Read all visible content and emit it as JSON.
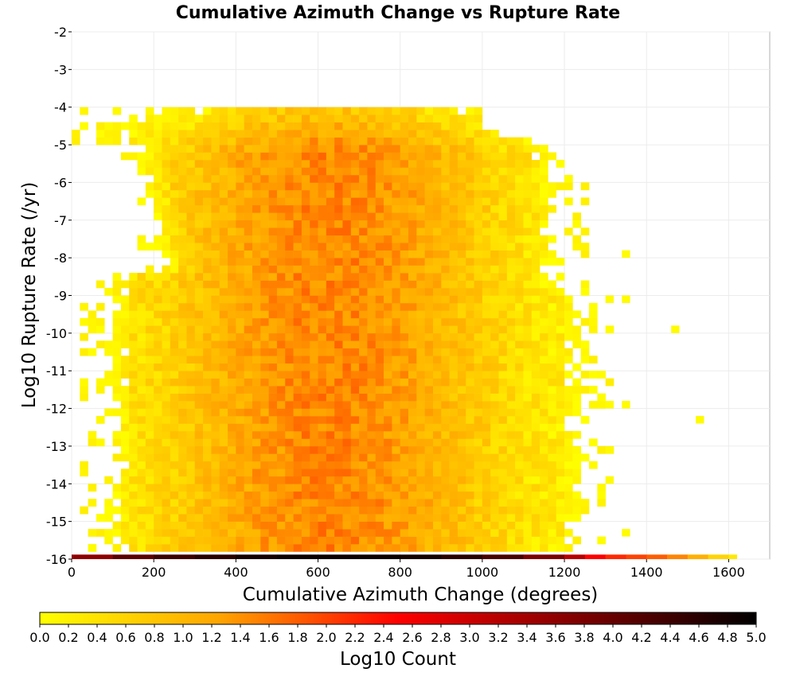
{
  "chart_data": {
    "type": "heatmap",
    "title": "Cumulative Azimuth Change vs Rupture Rate",
    "xlabel": "Cumulative Azimuth Change (degrees)",
    "ylabel": "Log10 Rupture Rate (/yr)",
    "xlim": [
      0,
      1700
    ],
    "ylim": [
      -16,
      -2
    ],
    "x_ticks": [
      "0",
      "200",
      "400",
      "600",
      "800",
      "1000",
      "1200",
      "1400",
      "1600"
    ],
    "y_ticks": [
      "-2",
      "-3",
      "-4",
      "-5",
      "-6",
      "-7",
      "-8",
      "-9",
      "-10",
      "-11",
      "-12",
      "-13",
      "-14",
      "-15",
      "-16"
    ],
    "x_bin_width": 20,
    "y_bin_width": 0.2,
    "grid": true,
    "colorbar": {
      "label": "Log10 Count",
      "range": [
        0.0,
        5.0
      ],
      "ticks": [
        "0.0",
        "0.2",
        "0.4",
        "0.6",
        "0.8",
        "1.0",
        "1.2",
        "1.4",
        "1.6",
        "1.8",
        "2.0",
        "2.2",
        "2.4",
        "2.6",
        "2.8",
        "3.0",
        "3.2",
        "3.4",
        "3.6",
        "3.8",
        "4.0",
        "4.2",
        "4.4",
        "4.6",
        "4.8",
        "5.0"
      ],
      "colors": [
        "#ffff00",
        "#ffa500",
        "#ff0000",
        "#800000",
        "#000000"
      ],
      "placement": "bottom"
    },
    "bottom_row_bins": [
      {
        "x": 0,
        "value": 3.6
      },
      {
        "x": 100,
        "value": 4.1
      },
      {
        "x": 200,
        "value": 4.4
      },
      {
        "x": 300,
        "value": 4.6
      },
      {
        "x": 400,
        "value": 4.8
      },
      {
        "x": 500,
        "value": 4.9
      },
      {
        "x": 600,
        "value": 4.9
      },
      {
        "x": 700,
        "value": 4.9
      },
      {
        "x": 800,
        "value": 4.8
      },
      {
        "x": 900,
        "value": 4.6
      },
      {
        "x": 1000,
        "value": 4.3
      },
      {
        "x": 1100,
        "value": 3.8
      },
      {
        "x": 1200,
        "value": 3.2
      },
      {
        "x": 1250,
        "value": 2.5
      },
      {
        "x": 1300,
        "value": 2.2
      },
      {
        "x": 1350,
        "value": 2.0
      },
      {
        "x": 1400,
        "value": 1.8
      },
      {
        "x": 1450,
        "value": 1.5
      },
      {
        "x": 1500,
        "value": 1.1
      },
      {
        "x": 1550,
        "value": 0.6
      },
      {
        "x": 1600,
        "value": 0.3
      }
    ],
    "density_profile": {
      "x_range": [
        0,
        1360
      ],
      "peak_x": 620,
      "peak_log10_count": 1.5,
      "upper_edge_log10_rate": -4,
      "outliers": [
        {
          "x": 1340,
          "y": -8
        },
        {
          "x": 1300,
          "y": -9.2
        },
        {
          "x": 1340,
          "y": -9.2
        },
        {
          "x": 1460,
          "y": -10
        },
        {
          "x": 1300,
          "y": -12
        },
        {
          "x": 1340,
          "y": -12
        },
        {
          "x": 1520,
          "y": -12.4
        },
        {
          "x": 1300,
          "y": -14
        },
        {
          "x": 1340,
          "y": -15.4
        }
      ]
    }
  }
}
